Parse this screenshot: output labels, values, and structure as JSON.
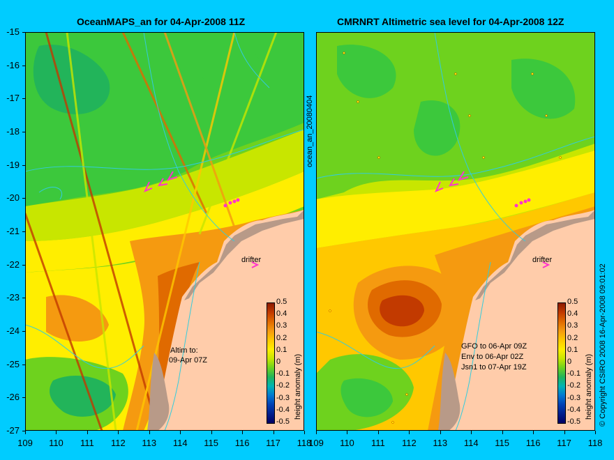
{
  "left_panel": {
    "title": "OceanMAPS_an for 04-Apr-2008 11Z",
    "note_line1": "Altim to:",
    "note_line2": "09-Apr 07Z",
    "drifter_label": "drifter"
  },
  "right_panel": {
    "title": "CMRNRT Altimetric sea level  for 04-Apr-2008 12Z",
    "note_line1": "GFO to 06-Apr 09Z",
    "note_line2": "Env to 06-Apr 02Z",
    "note_line3": "Jsn1 to 07-Apr 19Z",
    "drifter_label": "drifter"
  },
  "side_labels": {
    "file_id": "ocean_an_20080404",
    "copyright": "© Copyright CSIRO 2008  16-Apr-2008 09:01:02"
  },
  "axes": {
    "y_ticks": [
      "-15",
      "-16",
      "-17",
      "-18",
      "-19",
      "-20",
      "-21",
      "-22",
      "-23",
      "-24",
      "-25",
      "-26",
      "-27"
    ],
    "x_ticks": [
      "109",
      "110",
      "111",
      "112",
      "113",
      "114",
      "115",
      "116",
      "117",
      "118"
    ],
    "lat_range": [
      -27,
      -15
    ],
    "lon_range": [
      109,
      118
    ]
  },
  "colorbar": {
    "label": "height anomaly (m)",
    "ticks": [
      "0.5",
      "0.4",
      "0.3",
      "0.2",
      "0.1",
      "0",
      "-0.1",
      "-0.2",
      "-0.3",
      "-0.4",
      "-0.5"
    ],
    "colors": [
      "#8b1a00",
      "#c23a00",
      "#e06a00",
      "#f59a10",
      "#ffc800",
      "#ffee00",
      "#c8e600",
      "#6ed21e",
      "#22b45a",
      "#00b4b4",
      "#0078d2",
      "#0040b4",
      "#001e8c",
      "#000064"
    ]
  },
  "colors": {
    "background": "#00ccff",
    "land": "#ffccaa",
    "coast_shade": "#b89a88",
    "contour": "#33ccdd",
    "drifter_marker": "#ff33cc"
  }
}
